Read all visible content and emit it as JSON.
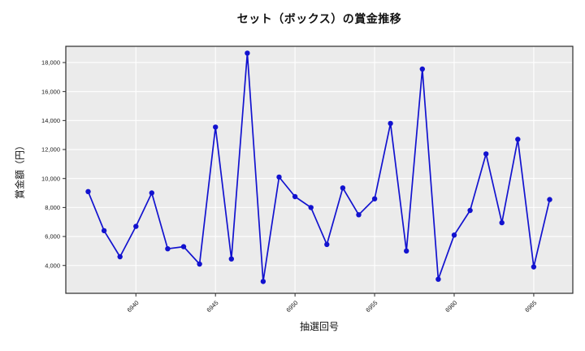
{
  "chart_data": {
    "type": "line",
    "title": "セット（ボックス）の賞金推移",
    "xlabel": "抽選回号",
    "ylabel": "賞金額（円）",
    "x": [
      6937,
      6938,
      6939,
      6940,
      6941,
      6942,
      6943,
      6944,
      6945,
      6946,
      6947,
      6948,
      6949,
      6950,
      6951,
      6952,
      6953,
      6954,
      6955,
      6956,
      6957,
      6958,
      6959,
      6960,
      6961,
      6962,
      6963,
      6964,
      6965,
      6966
    ],
    "values": [
      9100,
      6400,
      4600,
      6700,
      9000,
      5150,
      5300,
      4100,
      13550,
      4450,
      18650,
      2900,
      10100,
      8750,
      8000,
      5450,
      9350,
      7500,
      8600,
      13800,
      5000,
      17550,
      3050,
      6100,
      7800,
      11700,
      6950,
      12700,
      3900,
      8550
    ],
    "xticks": [
      6940,
      6945,
      6950,
      6955,
      6960,
      6965
    ],
    "yticks": [
      4000,
      6000,
      8000,
      10000,
      12000,
      14000,
      16000,
      18000
    ],
    "ylim": [
      2080,
      19120
    ],
    "grid": true,
    "legend": "none",
    "colors": {
      "line": "#1212cf",
      "marker": "#1212cf",
      "plot_background": "#ebebeb",
      "grid": "#ffffff",
      "frame": "#2b2b2b",
      "tick_text": "#1a1a1a",
      "figure_background": "#ffffff"
    }
  }
}
